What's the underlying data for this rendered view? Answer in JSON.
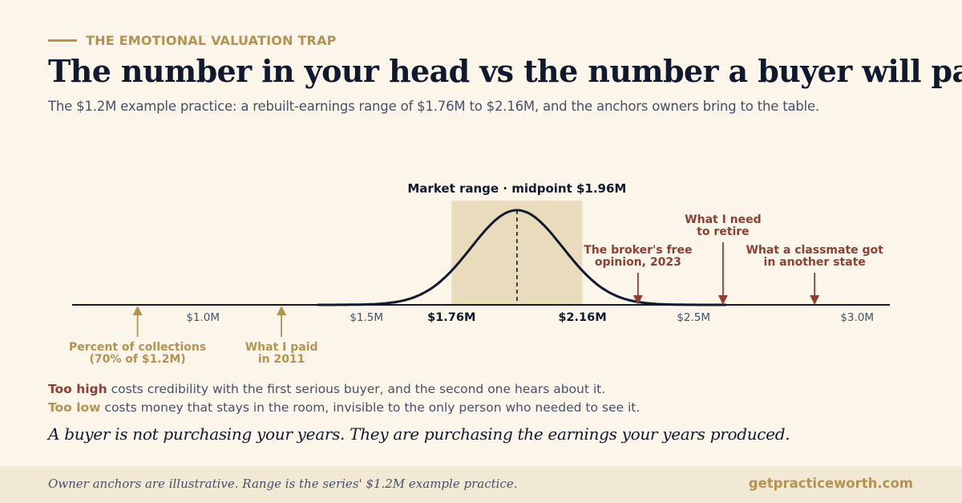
{
  "header": {
    "eyebrow": "THE EMOTIONAL VALUATION TRAP",
    "title": "The number in your head vs the number a buyer will pay",
    "subtitle": "The $1.2M example practice: a rebuilt-earnings range of $1.76M to $2.16M, and the anchors owners bring to the table."
  },
  "chart_data": {
    "type": "area",
    "xlim": [
      0.6,
      3.1
    ],
    "ticks": [
      {
        "value": 1.0,
        "label": "$1.0M",
        "bold": false
      },
      {
        "value": 1.5,
        "label": "$1.5M",
        "bold": false
      },
      {
        "value": 1.76,
        "label": "$1.76M",
        "bold": true
      },
      {
        "value": 2.16,
        "label": "$2.16M",
        "bold": true
      },
      {
        "value": 2.5,
        "label": "$2.5M",
        "bold": false
      },
      {
        "value": 3.0,
        "label": "$3.0M",
        "bold": false
      }
    ],
    "range": {
      "low": 1.76,
      "high": 2.16,
      "midpoint": 1.96,
      "label": "Market range  ·  midpoint $1.96M"
    },
    "curve": {
      "center": 1.96,
      "sd": 0.14,
      "from": 1.35,
      "to": 2.6
    },
    "anchors_high": [
      {
        "value": 2.33,
        "level": "low",
        "lines": [
          "The broker's free",
          "opinion, 2023"
        ]
      },
      {
        "value": 2.59,
        "level": "high",
        "lines": [
          "What I need",
          "to retire"
        ]
      },
      {
        "value": 2.87,
        "level": "low",
        "lines": [
          "What a classmate got",
          "in another state"
        ]
      }
    ],
    "anchors_low": [
      {
        "value": 0.8,
        "lines": [
          "Percent of collections",
          "(70% of $1.2M)"
        ]
      },
      {
        "value": 1.24,
        "lines": [
          "What I paid",
          "in 2011"
        ]
      }
    ],
    "colors": {
      "band": "#e9dcbc",
      "curve": "#101a2e",
      "high": "#8f3f31",
      "low": "#b5924e",
      "axis": "#101a2e",
      "tick": "#45506a"
    }
  },
  "notes": {
    "high_label": "Too high",
    "high_text": " costs credibility with the first serious buyer, and the second one hears about it.",
    "low_label": "Too low",
    "low_text": " costs money that stays in the room, invisible to the only person who needed to see it."
  },
  "quote": "A buyer is not purchasing your years. They are purchasing the earnings your years produced.",
  "footer": {
    "note": "Owner anchors are illustrative. Range is the series' $1.2M example practice.",
    "site": "getpracticeworth.com"
  }
}
